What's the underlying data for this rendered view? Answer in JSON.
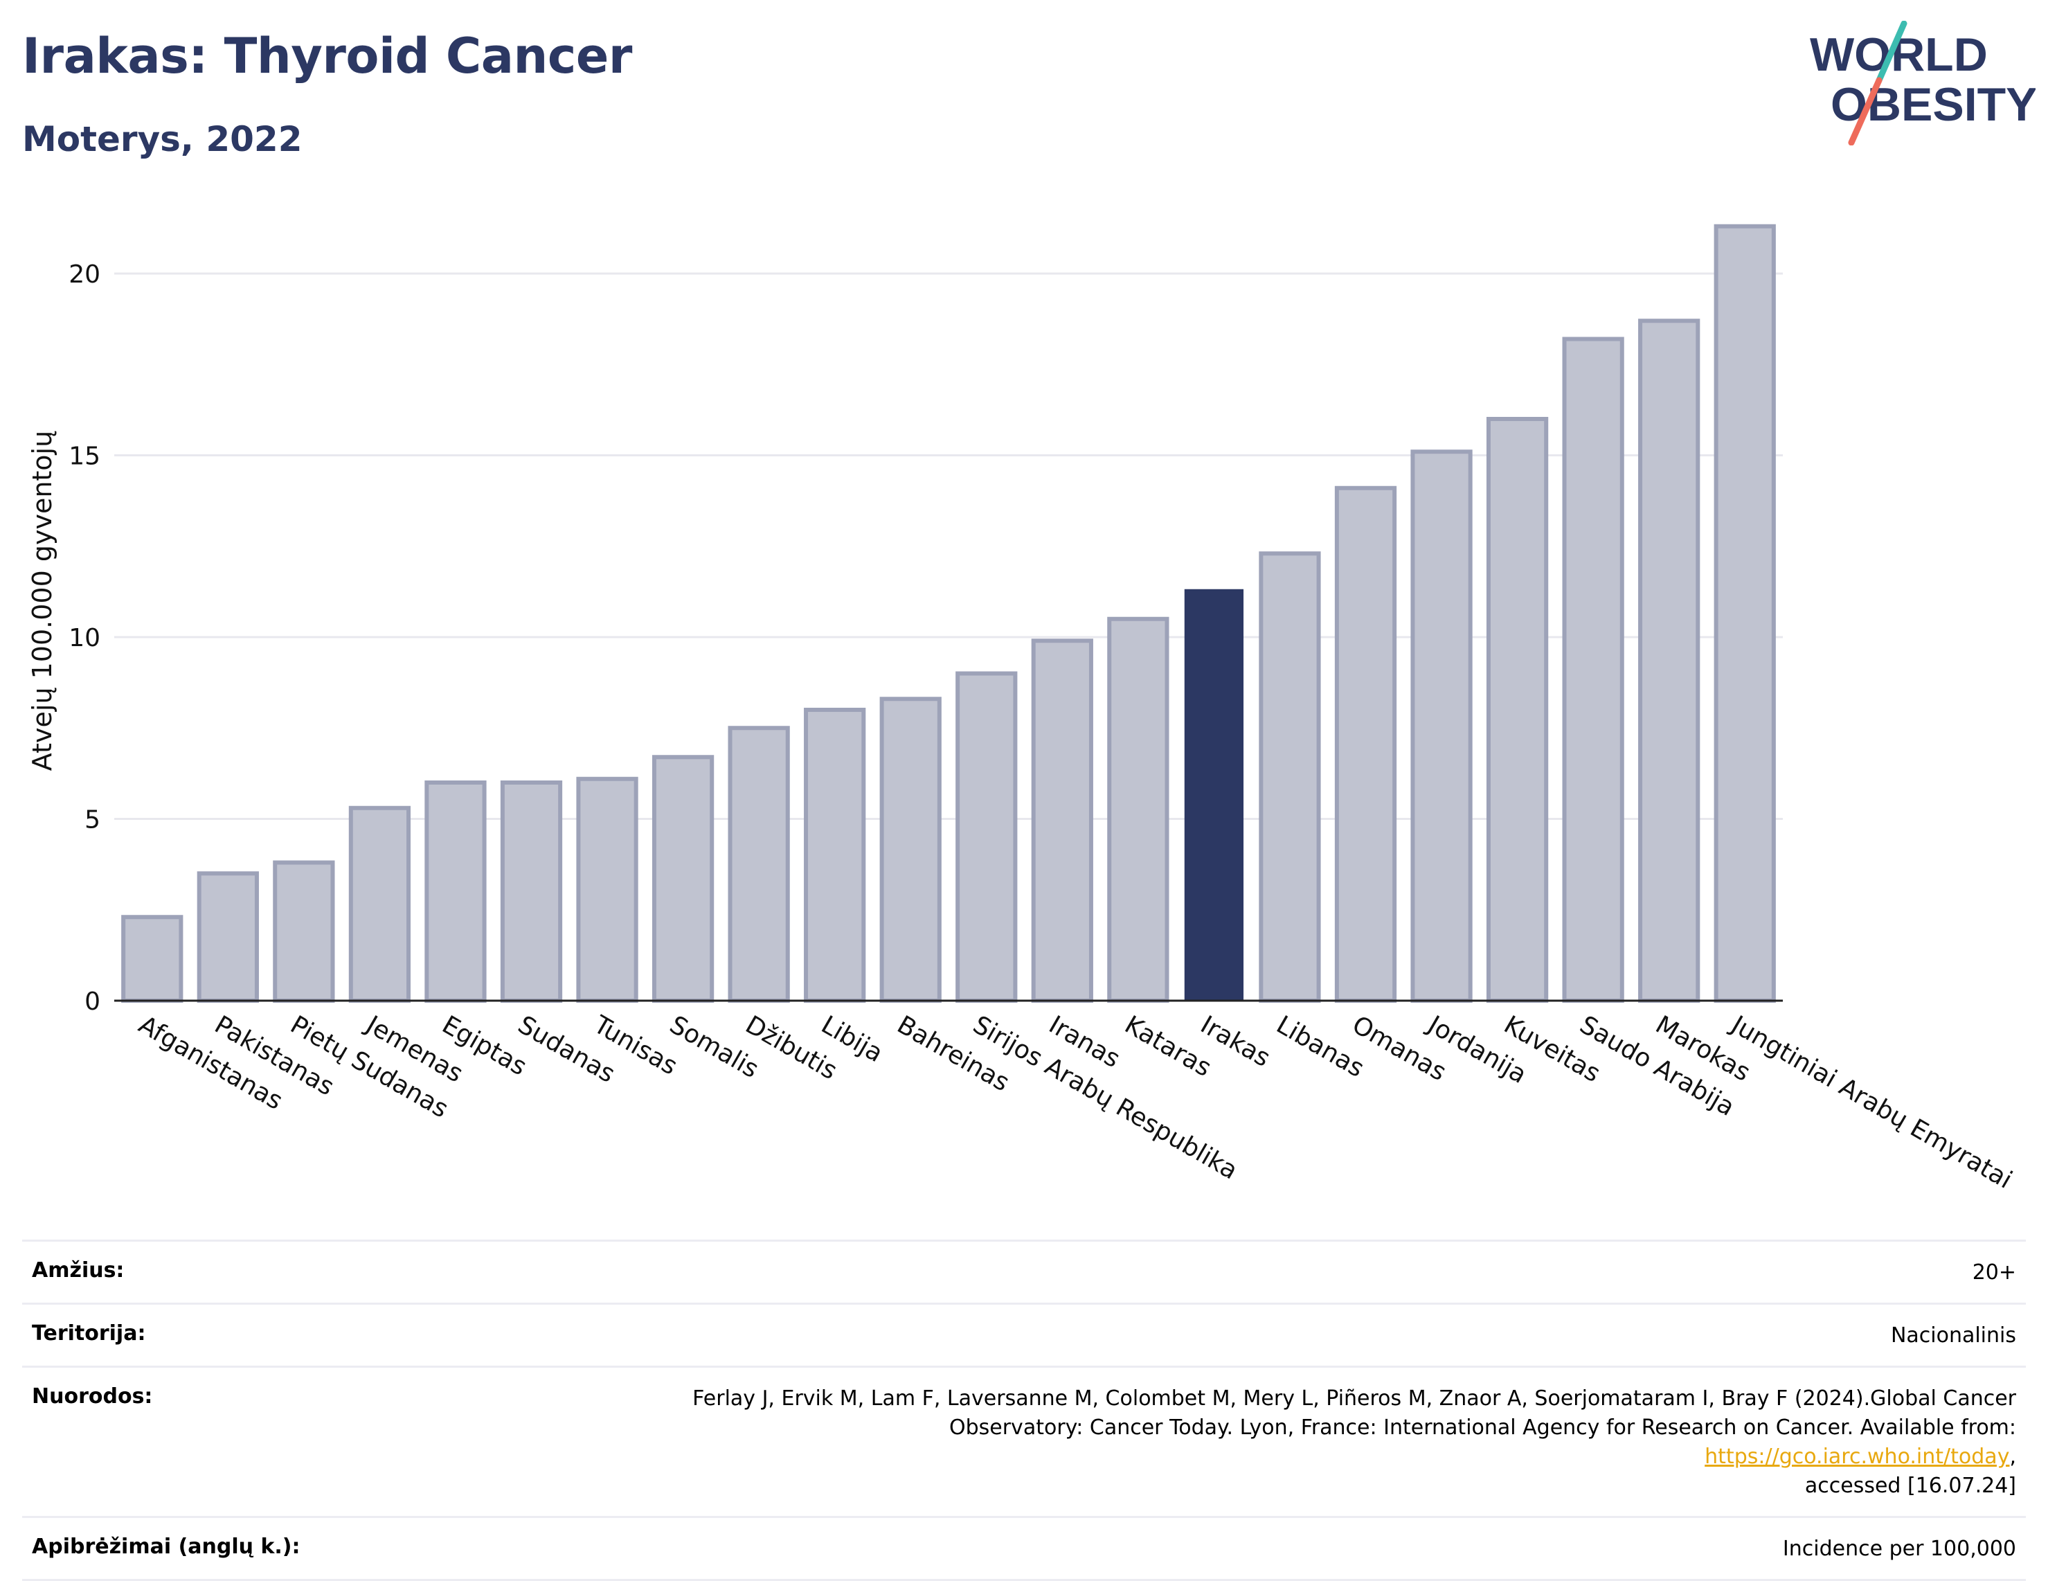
{
  "header": {
    "title": "Irakas: Thyroid Cancer",
    "subtitle": "Moterys, 2022",
    "logo_line1": "WORLD",
    "logo_line2": "OBESITY"
  },
  "colors": {
    "highlight": "#2c3863",
    "bar_fill": "#c0c3d0",
    "bar_stroke": "#9da2b8",
    "title": "#2c3863",
    "logo_teal": "#3cbcb0",
    "logo_coral": "#ee6b5b"
  },
  "chart_data": {
    "type": "bar",
    "title": "Irakas: Thyroid Cancer",
    "subtitle": "Moterys, 2022",
    "xlabel": "",
    "ylabel": "Atvejų 100.000 gyventojų",
    "ylim": [
      0,
      22
    ],
    "yticks": [
      0,
      5,
      10,
      15,
      20
    ],
    "grid": true,
    "highlight": "Irakas",
    "categories": [
      "Afganistanas",
      "Pakistanas",
      "Pietų Sudanas",
      "Jemenas",
      "Egiptas",
      "Sudanas",
      "Tunisas",
      "Somalis",
      "Džibutis",
      "Libija",
      "Bahreinas",
      "Sirijos Arabų Respublika",
      "Iranas",
      "Kataras",
      "Irakas",
      "Libanas",
      "Omanas",
      "Jordanija",
      "Kuveitas",
      "Saudo Arabija",
      "Marokas",
      "Jungtiniai Arabų Emyratai"
    ],
    "values": [
      2.3,
      3.5,
      3.8,
      5.3,
      6.0,
      6.0,
      6.1,
      6.7,
      7.5,
      8.0,
      8.3,
      9.0,
      9.9,
      10.5,
      11.3,
      12.3,
      14.1,
      15.1,
      16.0,
      18.2,
      18.7,
      21.3
    ]
  },
  "meta": {
    "age_label": "Amžius:",
    "age_value": "20+",
    "territory_label": "Teritorija:",
    "territory_value": "Nacionalinis",
    "refs_label": "Nuorodos:",
    "refs_line1": "Ferlay J, Ervik M, Lam F, Laversanne M, Colombet M, Mery L, Piñeros M, Znaor A, Soerjomataram I, Bray F (2024).Global Cancer",
    "refs_line2": "Observatory: Cancer Today. Lyon, France: International Agency for Research on Cancer. Available from: ",
    "refs_link": "https://gco.iarc.who.int/today",
    "refs_line2_end": ",",
    "refs_line3": "accessed [16.07.24]",
    "defs_label": "Apibrėžimai (anglų k.):",
    "defs_value": "Incidence per 100,000"
  }
}
